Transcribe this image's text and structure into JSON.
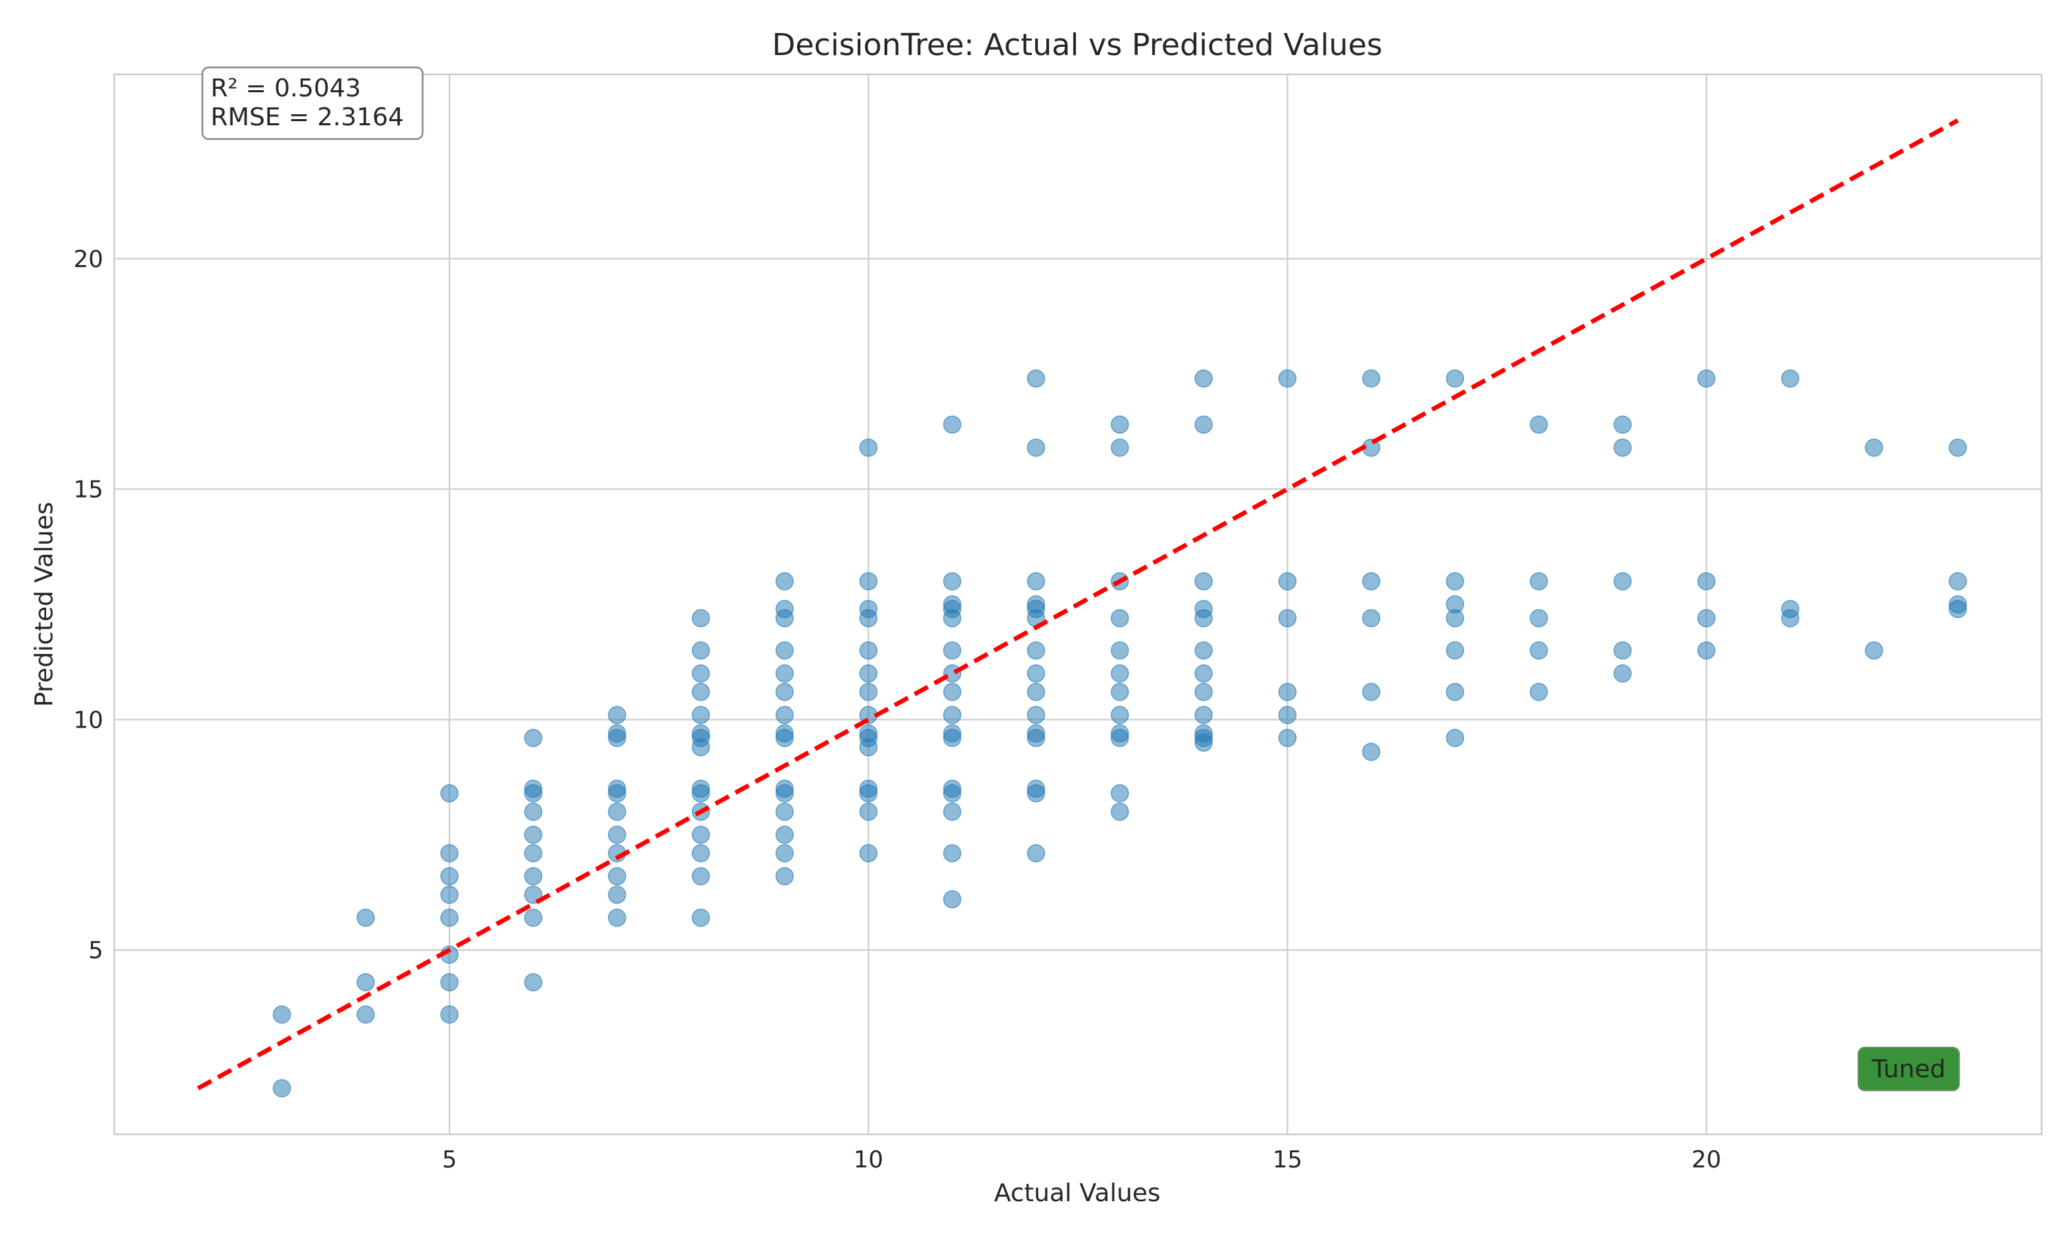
{
  "chart_data": {
    "type": "scatter",
    "title": "DecisionTree: Actual vs Predicted Values",
    "xlabel": "Actual Values",
    "ylabel": "Predicted Values",
    "xlim": [
      1,
      24
    ],
    "ylim": [
      1,
      24
    ],
    "xticks": [
      5,
      10,
      15,
      20
    ],
    "yticks": [
      5,
      10,
      15,
      20
    ],
    "grid": true,
    "point_color": "#1f77b4",
    "reference_line": {
      "x": [
        2,
        23
      ],
      "y": [
        2,
        23
      ],
      "color": "#ff0000",
      "style": "dashed"
    },
    "stats": {
      "r2": "R² = 0.5043",
      "rmse": "RMSE = 2.3164"
    },
    "badge": {
      "text": "Tuned",
      "color": "#2e8b2e"
    },
    "points": [
      [
        3,
        3.6
      ],
      [
        3,
        2.0
      ],
      [
        4,
        5.7
      ],
      [
        4,
        4.3
      ],
      [
        4,
        3.6
      ],
      [
        5,
        8.4
      ],
      [
        5,
        7.1
      ],
      [
        5,
        6.6
      ],
      [
        5,
        6.2
      ],
      [
        5,
        5.7
      ],
      [
        5,
        4.9
      ],
      [
        5,
        4.3
      ],
      [
        5,
        3.6
      ],
      [
        6,
        9.6
      ],
      [
        6,
        8.5
      ],
      [
        6,
        8.4
      ],
      [
        6,
        8.0
      ],
      [
        6,
        7.5
      ],
      [
        6,
        7.1
      ],
      [
        6,
        6.6
      ],
      [
        6,
        6.2
      ],
      [
        6,
        5.7
      ],
      [
        6,
        4.3
      ],
      [
        7,
        10.1
      ],
      [
        7,
        9.7
      ],
      [
        7,
        9.6
      ],
      [
        7,
        8.5
      ],
      [
        7,
        8.4
      ],
      [
        7,
        8.0
      ],
      [
        7,
        7.5
      ],
      [
        7,
        7.1
      ],
      [
        7,
        6.6
      ],
      [
        7,
        6.2
      ],
      [
        7,
        5.7
      ],
      [
        8,
        12.2
      ],
      [
        8,
        11.5
      ],
      [
        8,
        11.0
      ],
      [
        8,
        10.6
      ],
      [
        8,
        10.1
      ],
      [
        8,
        9.7
      ],
      [
        8,
        9.6
      ],
      [
        8,
        9.4
      ],
      [
        8,
        8.5
      ],
      [
        8,
        8.4
      ],
      [
        8,
        8.0
      ],
      [
        8,
        7.5
      ],
      [
        8,
        7.1
      ],
      [
        8,
        6.6
      ],
      [
        8,
        5.7
      ],
      [
        9,
        13.0
      ],
      [
        9,
        12.4
      ],
      [
        9,
        12.2
      ],
      [
        9,
        11.5
      ],
      [
        9,
        11.0
      ],
      [
        9,
        10.6
      ],
      [
        9,
        10.1
      ],
      [
        9,
        9.7
      ],
      [
        9,
        9.6
      ],
      [
        9,
        8.5
      ],
      [
        9,
        8.4
      ],
      [
        9,
        8.0
      ],
      [
        9,
        7.5
      ],
      [
        9,
        7.1
      ],
      [
        9,
        6.6
      ],
      [
        10,
        15.9
      ],
      [
        10,
        13.0
      ],
      [
        10,
        12.4
      ],
      [
        10,
        12.2
      ],
      [
        10,
        11.5
      ],
      [
        10,
        11.0
      ],
      [
        10,
        10.6
      ],
      [
        10,
        10.1
      ],
      [
        10,
        9.7
      ],
      [
        10,
        9.6
      ],
      [
        10,
        9.4
      ],
      [
        10,
        8.5
      ],
      [
        10,
        8.4
      ],
      [
        10,
        8.0
      ],
      [
        10,
        7.1
      ],
      [
        11,
        16.4
      ],
      [
        11,
        13.0
      ],
      [
        11,
        12.5
      ],
      [
        11,
        12.4
      ],
      [
        11,
        12.2
      ],
      [
        11,
        11.5
      ],
      [
        11,
        11.0
      ],
      [
        11,
        10.6
      ],
      [
        11,
        10.1
      ],
      [
        11,
        9.7
      ],
      [
        11,
        9.6
      ],
      [
        11,
        8.5
      ],
      [
        11,
        8.4
      ],
      [
        11,
        8.0
      ],
      [
        11,
        7.1
      ],
      [
        11,
        6.1
      ],
      [
        12,
        17.4
      ],
      [
        12,
        15.9
      ],
      [
        12,
        13.0
      ],
      [
        12,
        12.5
      ],
      [
        12,
        12.4
      ],
      [
        12,
        12.2
      ],
      [
        12,
        11.5
      ],
      [
        12,
        11.0
      ],
      [
        12,
        10.6
      ],
      [
        12,
        10.1
      ],
      [
        12,
        9.7
      ],
      [
        12,
        9.6
      ],
      [
        12,
        8.5
      ],
      [
        12,
        8.4
      ],
      [
        12,
        7.1
      ],
      [
        13,
        16.4
      ],
      [
        13,
        15.9
      ],
      [
        13,
        13.0
      ],
      [
        13,
        12.2
      ],
      [
        13,
        11.5
      ],
      [
        13,
        11.0
      ],
      [
        13,
        10.6
      ],
      [
        13,
        10.1
      ],
      [
        13,
        9.7
      ],
      [
        13,
        9.6
      ],
      [
        13,
        8.4
      ],
      [
        13,
        8.0
      ],
      [
        14,
        17.4
      ],
      [
        14,
        16.4
      ],
      [
        14,
        13.0
      ],
      [
        14,
        12.4
      ],
      [
        14,
        12.2
      ],
      [
        14,
        11.5
      ],
      [
        14,
        11.0
      ],
      [
        14,
        10.6
      ],
      [
        14,
        10.1
      ],
      [
        14,
        9.7
      ],
      [
        14,
        9.6
      ],
      [
        14,
        9.5
      ],
      [
        15,
        17.4
      ],
      [
        15,
        13.0
      ],
      [
        15,
        12.2
      ],
      [
        15,
        10.6
      ],
      [
        15,
        10.1
      ],
      [
        15,
        9.6
      ],
      [
        16,
        17.4
      ],
      [
        16,
        15.9
      ],
      [
        16,
        13.0
      ],
      [
        16,
        12.2
      ],
      [
        16,
        10.6
      ],
      [
        16,
        9.3
      ],
      [
        17,
        17.4
      ],
      [
        17,
        13.0
      ],
      [
        17,
        12.5
      ],
      [
        17,
        12.2
      ],
      [
        17,
        11.5
      ],
      [
        17,
        10.6
      ],
      [
        17,
        9.6
      ],
      [
        18,
        16.4
      ],
      [
        18,
        13.0
      ],
      [
        18,
        12.2
      ],
      [
        18,
        11.5
      ],
      [
        18,
        10.6
      ],
      [
        19,
        16.4
      ],
      [
        19,
        15.9
      ],
      [
        19,
        13.0
      ],
      [
        19,
        11.5
      ],
      [
        19,
        11.0
      ],
      [
        20,
        17.4
      ],
      [
        20,
        13.0
      ],
      [
        20,
        12.2
      ],
      [
        20,
        11.5
      ],
      [
        21,
        17.4
      ],
      [
        21,
        12.4
      ],
      [
        21,
        12.2
      ],
      [
        22,
        15.9
      ],
      [
        22,
        11.5
      ],
      [
        23,
        15.9
      ],
      [
        23,
        13.0
      ],
      [
        23,
        12.5
      ],
      [
        23,
        12.4
      ]
    ]
  }
}
